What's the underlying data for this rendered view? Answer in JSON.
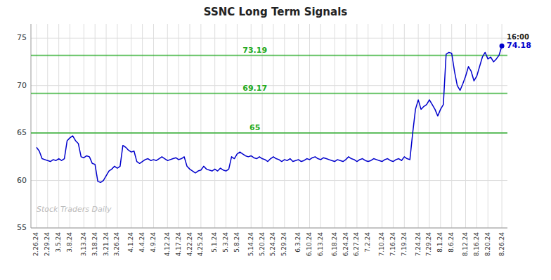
{
  "chart_data": {
    "type": "line",
    "title": "SSNC Long Term Signals",
    "categories": [
      "2.26.24",
      null,
      null,
      null,
      "2.29.24",
      null,
      null,
      null,
      "3.5.24",
      null,
      null,
      null,
      "3.8.24",
      null,
      null,
      null,
      null,
      "3.13.24",
      null,
      null,
      null,
      "3.18.24",
      null,
      null,
      null,
      "3.21.24",
      null,
      null,
      null,
      "3.26.24",
      null,
      null,
      null,
      null,
      "4.1.24",
      null,
      null,
      null,
      "4.4.24",
      null,
      null,
      null,
      "4.9.24",
      null,
      null,
      null,
      null,
      "4.12.24",
      null,
      null,
      null,
      "4.17.24",
      null,
      null,
      null,
      "4.22.24",
      null,
      null,
      null,
      "4.25.24",
      null,
      null,
      null,
      null,
      "5.1.24",
      null,
      null,
      null,
      "5.3.24",
      null,
      null,
      null,
      "5.8.24",
      null,
      null,
      null,
      null,
      "5.14.24",
      null,
      null,
      null,
      "5.20.24",
      null,
      null,
      null,
      "5.24.24",
      null,
      null,
      null,
      "5.29.24",
      null,
      null,
      null,
      null,
      "6.3.24",
      null,
      null,
      null,
      "6.10.24",
      null,
      null,
      null,
      "6.13.24",
      null,
      null,
      null,
      null,
      "6.18.24",
      null,
      null,
      null,
      "6.24.24",
      null,
      null,
      null,
      "6.27.24",
      null,
      null,
      null,
      "7.2.24",
      null,
      null,
      null,
      null,
      "7.10.24",
      null,
      null,
      null,
      "7.16.24",
      null,
      null,
      null,
      "7.19.24",
      null,
      null,
      null,
      null,
      "7.24.24",
      null,
      null,
      null,
      "7.29.24",
      null,
      null,
      null,
      "8.1.24",
      null,
      null,
      null,
      "8.6.24",
      null,
      null,
      null,
      null,
      "8.12.24",
      null,
      null,
      null,
      "8.16.24",
      null,
      null,
      null,
      "8.20.24",
      null,
      null,
      null,
      null,
      "8.26.24"
    ],
    "series": [
      {
        "color": "#0000cc",
        "values": [
          63.5,
          63.1,
          62.3,
          62.2,
          62.1,
          62.0,
          62.2,
          62.1,
          62.3,
          62.1,
          62.3,
          64.2,
          64.5,
          64.7,
          64.2,
          63.9,
          62.5,
          62.4,
          62.6,
          62.5,
          61.8,
          61.7,
          59.9,
          59.8,
          60.0,
          60.5,
          61.0,
          61.2,
          61.5,
          61.3,
          61.5,
          63.7,
          63.5,
          63.2,
          63.0,
          63.1,
          62.0,
          61.8,
          62.0,
          62.2,
          62.3,
          62.1,
          62.2,
          62.1,
          62.3,
          62.5,
          62.3,
          62.1,
          62.2,
          62.3,
          62.4,
          62.2,
          62.3,
          62.5,
          61.5,
          61.2,
          61.0,
          60.8,
          61.0,
          61.1,
          61.5,
          61.2,
          61.1,
          61.0,
          61.2,
          61.0,
          61.3,
          61.1,
          61.0,
          61.2,
          62.5,
          62.3,
          62.8,
          63.0,
          62.8,
          62.6,
          62.5,
          62.6,
          62.4,
          62.3,
          62.5,
          62.3,
          62.2,
          62.0,
          62.3,
          62.5,
          62.3,
          62.2,
          62.0,
          62.2,
          62.1,
          62.3,
          62.0,
          62.1,
          62.2,
          62.0,
          62.1,
          62.3,
          62.2,
          62.4,
          62.5,
          62.3,
          62.2,
          62.4,
          62.3,
          62.2,
          62.1,
          62.0,
          62.2,
          62.1,
          62.0,
          62.2,
          62.5,
          62.3,
          62.2,
          62.0,
          62.2,
          62.3,
          62.1,
          62.0,
          62.1,
          62.3,
          62.2,
          62.1,
          62.0,
          62.2,
          62.3,
          62.1,
          62.0,
          62.2,
          62.3,
          62.1,
          62.5,
          62.3,
          62.2,
          65.0,
          67.5,
          68.5,
          67.5,
          67.8,
          68.0,
          68.5,
          68.0,
          67.5,
          66.8,
          67.5,
          68.0,
          73.3,
          73.5,
          73.4,
          71.5,
          70.0,
          69.5,
          70.2,
          71.0,
          72.0,
          71.5,
          70.5,
          71.0,
          72.0,
          73.0,
          73.5,
          72.8,
          73.0,
          72.5,
          72.8,
          73.2,
          74.18
        ]
      }
    ],
    "ylim": [
      55,
      76.5
    ],
    "yticks": [
      55,
      60,
      65,
      70,
      75
    ],
    "grid": true,
    "hlines": [
      {
        "value": 73.19,
        "color": "#22aa22"
      },
      {
        "value": 69.17,
        "color": "#22aa22"
      },
      {
        "value": 65,
        "color": "#22aa22"
      }
    ],
    "last_point": {
      "time": "16:00",
      "value": 74.18
    },
    "watermark": "Stock Traders Daily"
  }
}
